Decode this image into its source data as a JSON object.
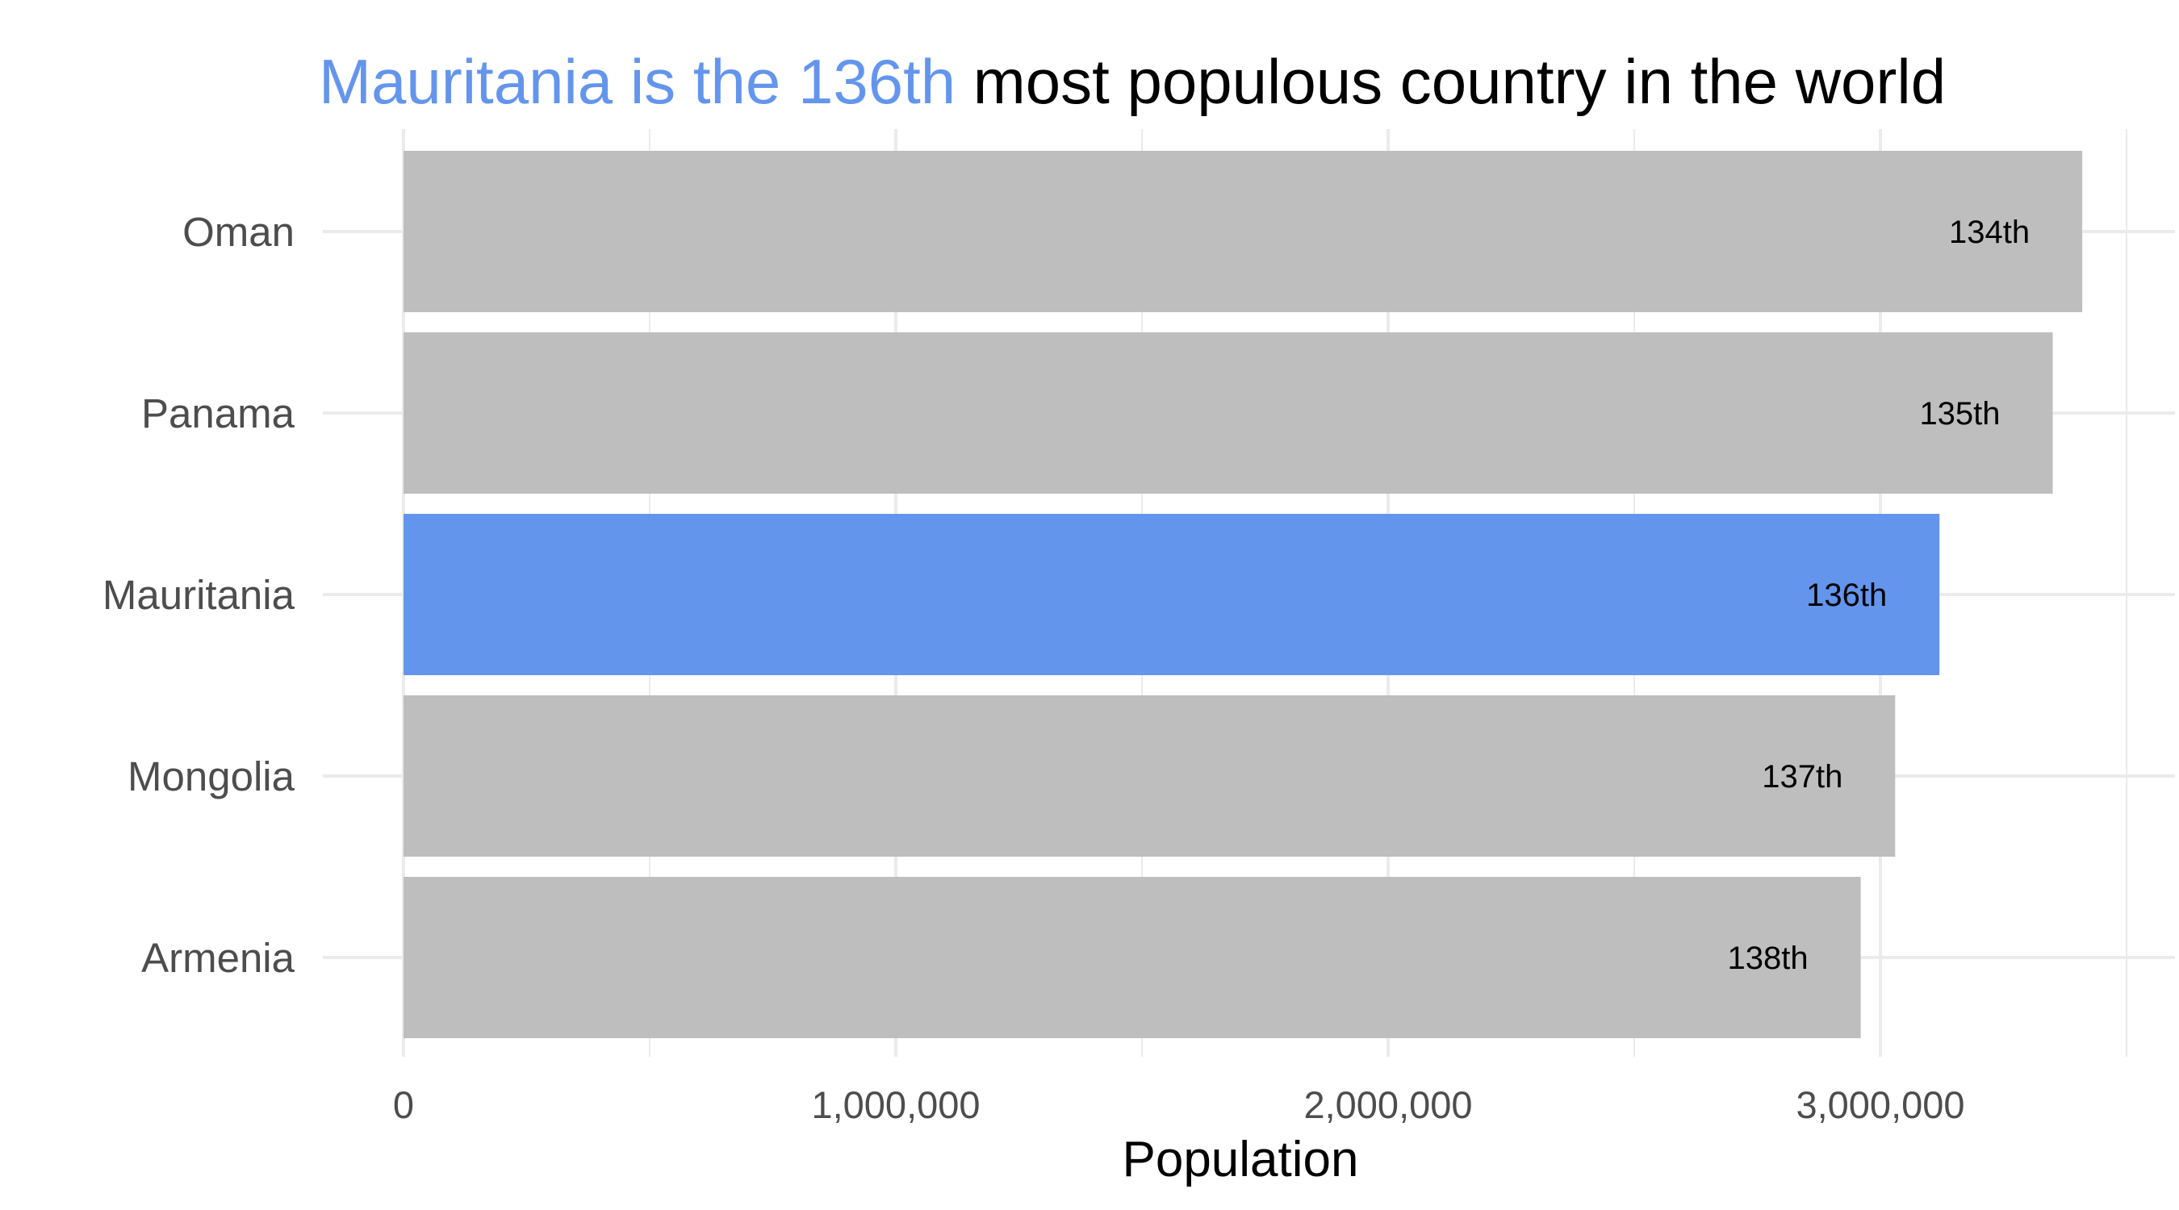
{
  "chart_data": {
    "type": "bar",
    "orientation": "horizontal",
    "title": {
      "highlight": "Mauritania is the 136th",
      "rest": " most populous country in the world"
    },
    "xlabel": "Population",
    "ylabel": "",
    "categories": [
      "Oman",
      "Panama",
      "Mauritania",
      "Mongolia",
      "Armenia"
    ],
    "values": [
      3410000,
      3350000,
      3120000,
      3030000,
      2960000
    ],
    "data_labels": [
      "134th",
      "135th",
      "136th",
      "137th",
      "138th"
    ],
    "highlight_category": "Mauritania",
    "x_ticks": [
      0,
      1000000,
      2000000,
      3000000
    ],
    "x_tick_labels": [
      "0",
      "1,000,000",
      "2,000,000",
      "3,000,000"
    ],
    "xlim": [
      0,
      3500000
    ],
    "grid": true,
    "legend": "none",
    "colors": {
      "highlight": "#6495ED",
      "default_bar": "#BEBEBE",
      "grid": "#EBEBEB",
      "title_rest": "#000000"
    }
  }
}
